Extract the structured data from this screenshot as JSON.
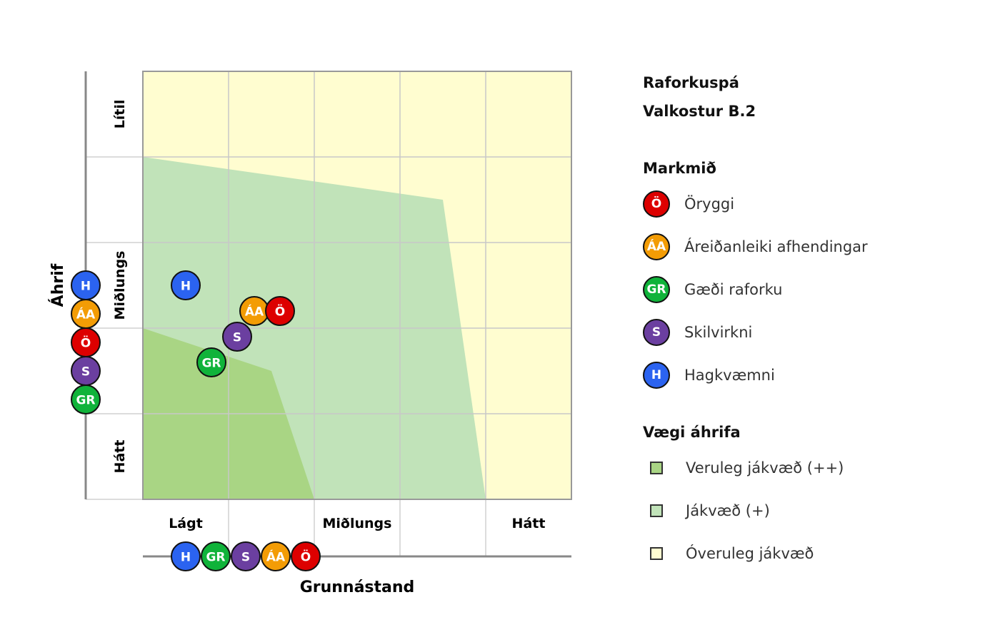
{
  "legend": {
    "title1": "Raforkuspá",
    "title2": "Valkostur B.2",
    "goals_title": "Markmið",
    "goals": [
      {
        "code": "Ö",
        "label": "Öryggi",
        "color": "#dd0000"
      },
      {
        "code": "ÁA",
        "label": "Áreiðanleiki afhendingar",
        "color": "#f39c05"
      },
      {
        "code": "GR",
        "label": "Gæði raforku",
        "color": "#10b33a"
      },
      {
        "code": "S",
        "label": "Skilvirkni",
        "color": "#6b3fa0"
      },
      {
        "code": "H",
        "label": "Hagkvæmni",
        "color": "#2b63f0"
      }
    ],
    "weights_title": "Vægi áhrifa",
    "weights": [
      {
        "label": "Veruleg jákvæð (++)",
        "color": "#a9d584"
      },
      {
        "label": "Jákvæð (+)",
        "color": "#c1e3b9"
      },
      {
        "label": "Óveruleg jákvæð",
        "color": "#fffdd0"
      }
    ]
  },
  "chart_data": {
    "type": "scatter",
    "xlabel": "Grunnástand",
    "ylabel": "Áhrif",
    "xlim": [
      0,
      5
    ],
    "ylim": [
      0,
      5
    ],
    "x_tick_labels": [
      "Lágt",
      "Miðlungs",
      "Hátt"
    ],
    "y_tick_labels": [
      "Lítil",
      "Miðlungs",
      "Hátt"
    ],
    "grid": true,
    "regions": [
      {
        "name": "Óveruleg jákvæð",
        "points": [
          [
            0,
            0
          ],
          [
            5,
            0
          ],
          [
            5,
            5
          ],
          [
            0,
            5
          ]
        ]
      },
      {
        "name": "Jákvæð (+)",
        "points": [
          [
            0,
            4
          ],
          [
            3.5,
            3.5
          ],
          [
            4,
            0
          ],
          [
            0,
            0
          ]
        ]
      },
      {
        "name": "Veruleg jákvæð (++)",
        "points": [
          [
            0,
            2
          ],
          [
            1.5,
            1.5
          ],
          [
            2,
            0
          ],
          [
            0,
            0
          ]
        ]
      }
    ],
    "points": [
      {
        "code": "H",
        "x": 0.5,
        "y": 2.5
      },
      {
        "code": "ÁA",
        "x": 1.3,
        "y": 2.2
      },
      {
        "code": "Ö",
        "x": 1.6,
        "y": 2.2
      },
      {
        "code": "S",
        "x": 1.1,
        "y": 1.9
      },
      {
        "code": "GR",
        "x": 0.8,
        "y": 1.6
      }
    ]
  }
}
